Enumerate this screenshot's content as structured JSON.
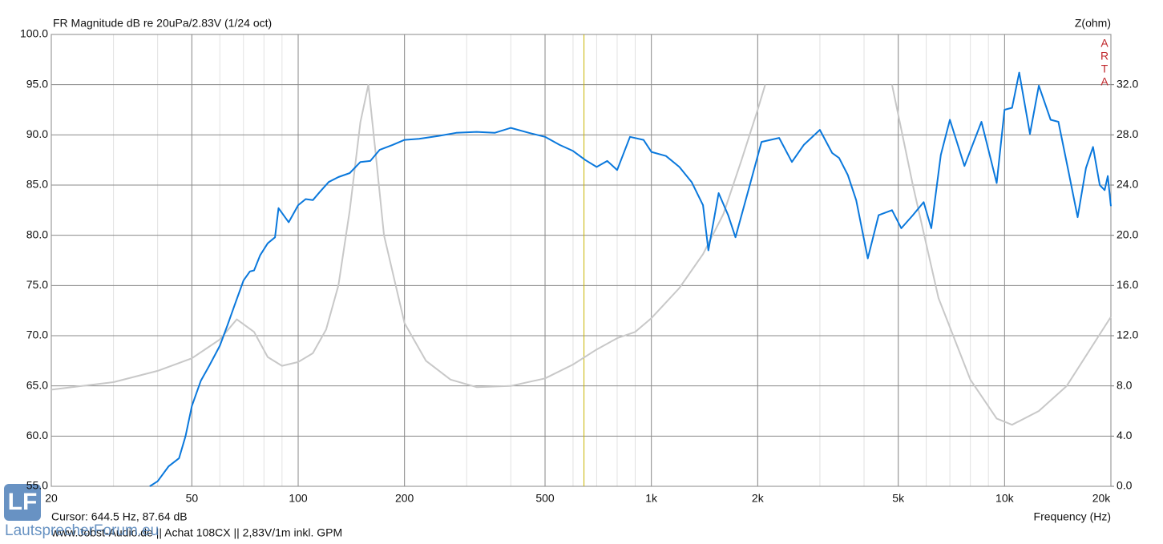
{
  "chart_data": {
    "type": "line",
    "title": "FR Magnitude dB re 20uPa/2.83V (1/24 oct)",
    "y2_label": "Z(ohm)",
    "brand": [
      "A",
      "R",
      "T",
      "A"
    ],
    "x_label": "Frequency (Hz)",
    "cursor": {
      "x": 644.5,
      "label": "Cursor: 644.5 Hz, 87.64 dB"
    },
    "footer": "www.Jobst-Audio.de  ||  Achat 108CX  ||  2,83V/1m  inkl. GPM",
    "watermark": {
      "logo": "LF",
      "text": "LautsprecherForum.eu"
    },
    "xscale": "log",
    "grid": true,
    "minor_grid": true,
    "xlim": [
      20,
      20000
    ],
    "xticks": [
      20,
      50,
      100,
      200,
      500,
      {
        "value": 1000,
        "label": "1k"
      },
      {
        "value": 2000,
        "label": "2k"
      },
      {
        "value": 5000,
        "label": "5k"
      },
      {
        "value": 10000,
        "label": "10k"
      },
      {
        "value": 20000,
        "label": "20k"
      }
    ],
    "ylim": [
      55,
      100
    ],
    "yticks": [
      {
        "value": 55,
        "label": "55.0"
      },
      {
        "value": 60,
        "label": "60.0"
      },
      {
        "value": 65,
        "label": "65.0"
      },
      {
        "value": 70,
        "label": "70.0"
      },
      {
        "value": 75,
        "label": "75.0"
      },
      {
        "value": 80,
        "label": "80.0"
      },
      {
        "value": 85,
        "label": "85.0"
      },
      {
        "value": 90,
        "label": "90.0"
      },
      {
        "value": 95,
        "label": "95.0"
      },
      {
        "value": 100,
        "label": "100.0"
      }
    ],
    "y2lim": [
      0,
      36
    ],
    "y2ticks": [
      {
        "value": 0,
        "label": "0.0"
      },
      {
        "value": 4,
        "label": "4.0"
      },
      {
        "value": 8,
        "label": "8.0"
      },
      {
        "value": 12,
        "label": "12.0"
      },
      {
        "value": 16,
        "label": "16.0"
      },
      {
        "value": 20,
        "label": "20.0"
      },
      {
        "value": 24,
        "label": "24.0"
      },
      {
        "value": 28,
        "label": "28.0"
      },
      {
        "value": 32,
        "label": "32.0"
      }
    ],
    "series": [
      {
        "color": "#0a78dc",
        "x": [
          38,
          40,
          43,
          46,
          48,
          50,
          53,
          56,
          60,
          63,
          66,
          70,
          73,
          75,
          78,
          82,
          86,
          88,
          94,
          100,
          105,
          110,
          115,
          122,
          130,
          140,
          150,
          160,
          170,
          185,
          200,
          220,
          250,
          280,
          320,
          360,
          400,
          450,
          500,
          550,
          600,
          650,
          700,
          750,
          800,
          870,
          950,
          1000,
          1100,
          1200,
          1300,
          1400,
          1450,
          1550,
          1650,
          1730,
          1900,
          2050,
          2300,
          2500,
          2700,
          3000,
          3250,
          3400,
          3600,
          3800,
          4100,
          4400,
          4800,
          5100,
          5500,
          5900,
          6200,
          6600,
          7000,
          7700,
          8600,
          9500,
          10000,
          10500,
          11000,
          11800,
          12500,
          13500,
          14200,
          15200,
          16100,
          17000,
          17800,
          18600,
          19200,
          19600,
          20000
        ],
        "values": [
          55.0,
          55.5,
          57,
          57.8,
          60,
          63,
          65.5,
          67,
          69,
          71,
          73,
          75.5,
          76.4,
          76.5,
          78,
          79.2,
          79.8,
          82.7,
          81.3,
          83,
          83.6,
          83.5,
          84.3,
          85.3,
          85.8,
          86.2,
          87.3,
          87.4,
          88.5,
          89,
          89.5,
          89.6,
          89.9,
          90.2,
          90.3,
          90.2,
          90.7,
          90.2,
          89.8,
          89,
          88.4,
          87.5,
          86.8,
          87.4,
          86.5,
          89.8,
          89.5,
          88.3,
          87.9,
          86.8,
          85.3,
          83,
          78.5,
          84.2,
          82,
          79.8,
          85,
          89.3,
          89.7,
          87.3,
          89,
          90.5,
          88.2,
          87.7,
          86,
          83.5,
          77.7,
          82,
          82.5,
          80.7,
          82,
          83.3,
          80.7,
          88,
          91.5,
          86.9,
          91.3,
          85.2,
          92.5,
          92.7,
          96.2,
          90.1,
          94.9,
          91.5,
          91.3,
          86.2,
          81.8,
          86.7,
          88.8,
          85,
          84.5,
          85.9,
          82.9
        ]
      },
      {
        "color": "#c8c8c8",
        "axis": "y2",
        "x": [
          20,
          30,
          40,
          50,
          60,
          67,
          75,
          82,
          90,
          100,
          110,
          120,
          130,
          140,
          150,
          158,
          165,
          175,
          200,
          230,
          270,
          320,
          400,
          500,
          600,
          700,
          800,
          900,
          1000,
          1200,
          1400,
          1600,
          1800,
          2000,
          2100,
          3000,
          4800,
          5500,
          6500,
          8000,
          9500,
          10500,
          12500,
          15000,
          20000
        ],
        "values": [
          7.7,
          8.3,
          9.2,
          10.2,
          11.7,
          13.3,
          12.3,
          10.3,
          9.6,
          9.9,
          10.6,
          12.5,
          16,
          22,
          29,
          32,
          27,
          20,
          13,
          10,
          8.5,
          7.9,
          8,
          8.6,
          9.7,
          10.9,
          11.8,
          12.3,
          13.4,
          15.8,
          18.5,
          21.7,
          26,
          30,
          32,
          null,
          32,
          24,
          15,
          8.5,
          5.4,
          4.9,
          6,
          8,
          13.5
        ]
      }
    ]
  }
}
